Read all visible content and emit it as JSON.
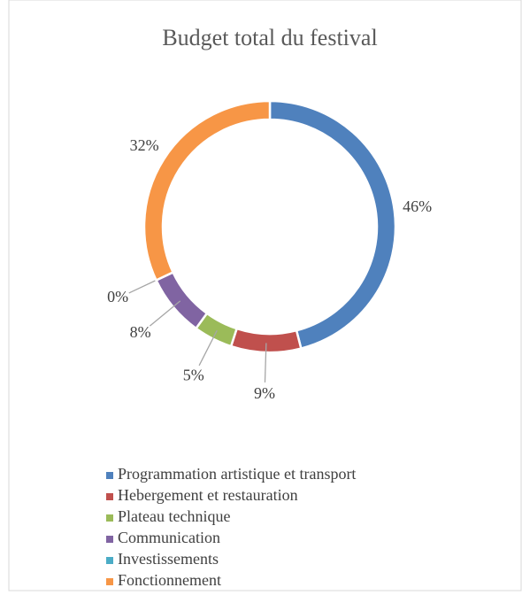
{
  "chart_data": {
    "type": "pie",
    "donut": true,
    "title": "Budget total du festival",
    "categories": [
      "Programmation artistique et transport",
      "Hebergement et restauration",
      "Plateau technique",
      "Communication",
      "Investissements",
      "Fonctionnement"
    ],
    "values": [
      46,
      9,
      5,
      8,
      0,
      32
    ],
    "value_labels": [
      "46%",
      "9%",
      "5%",
      "8%",
      "0%",
      "32%"
    ],
    "colors": [
      "#4f81bd",
      "#c0504d",
      "#9bbb59",
      "#8064a2",
      "#4bacc6",
      "#f79646"
    ],
    "legend": "bottom"
  }
}
